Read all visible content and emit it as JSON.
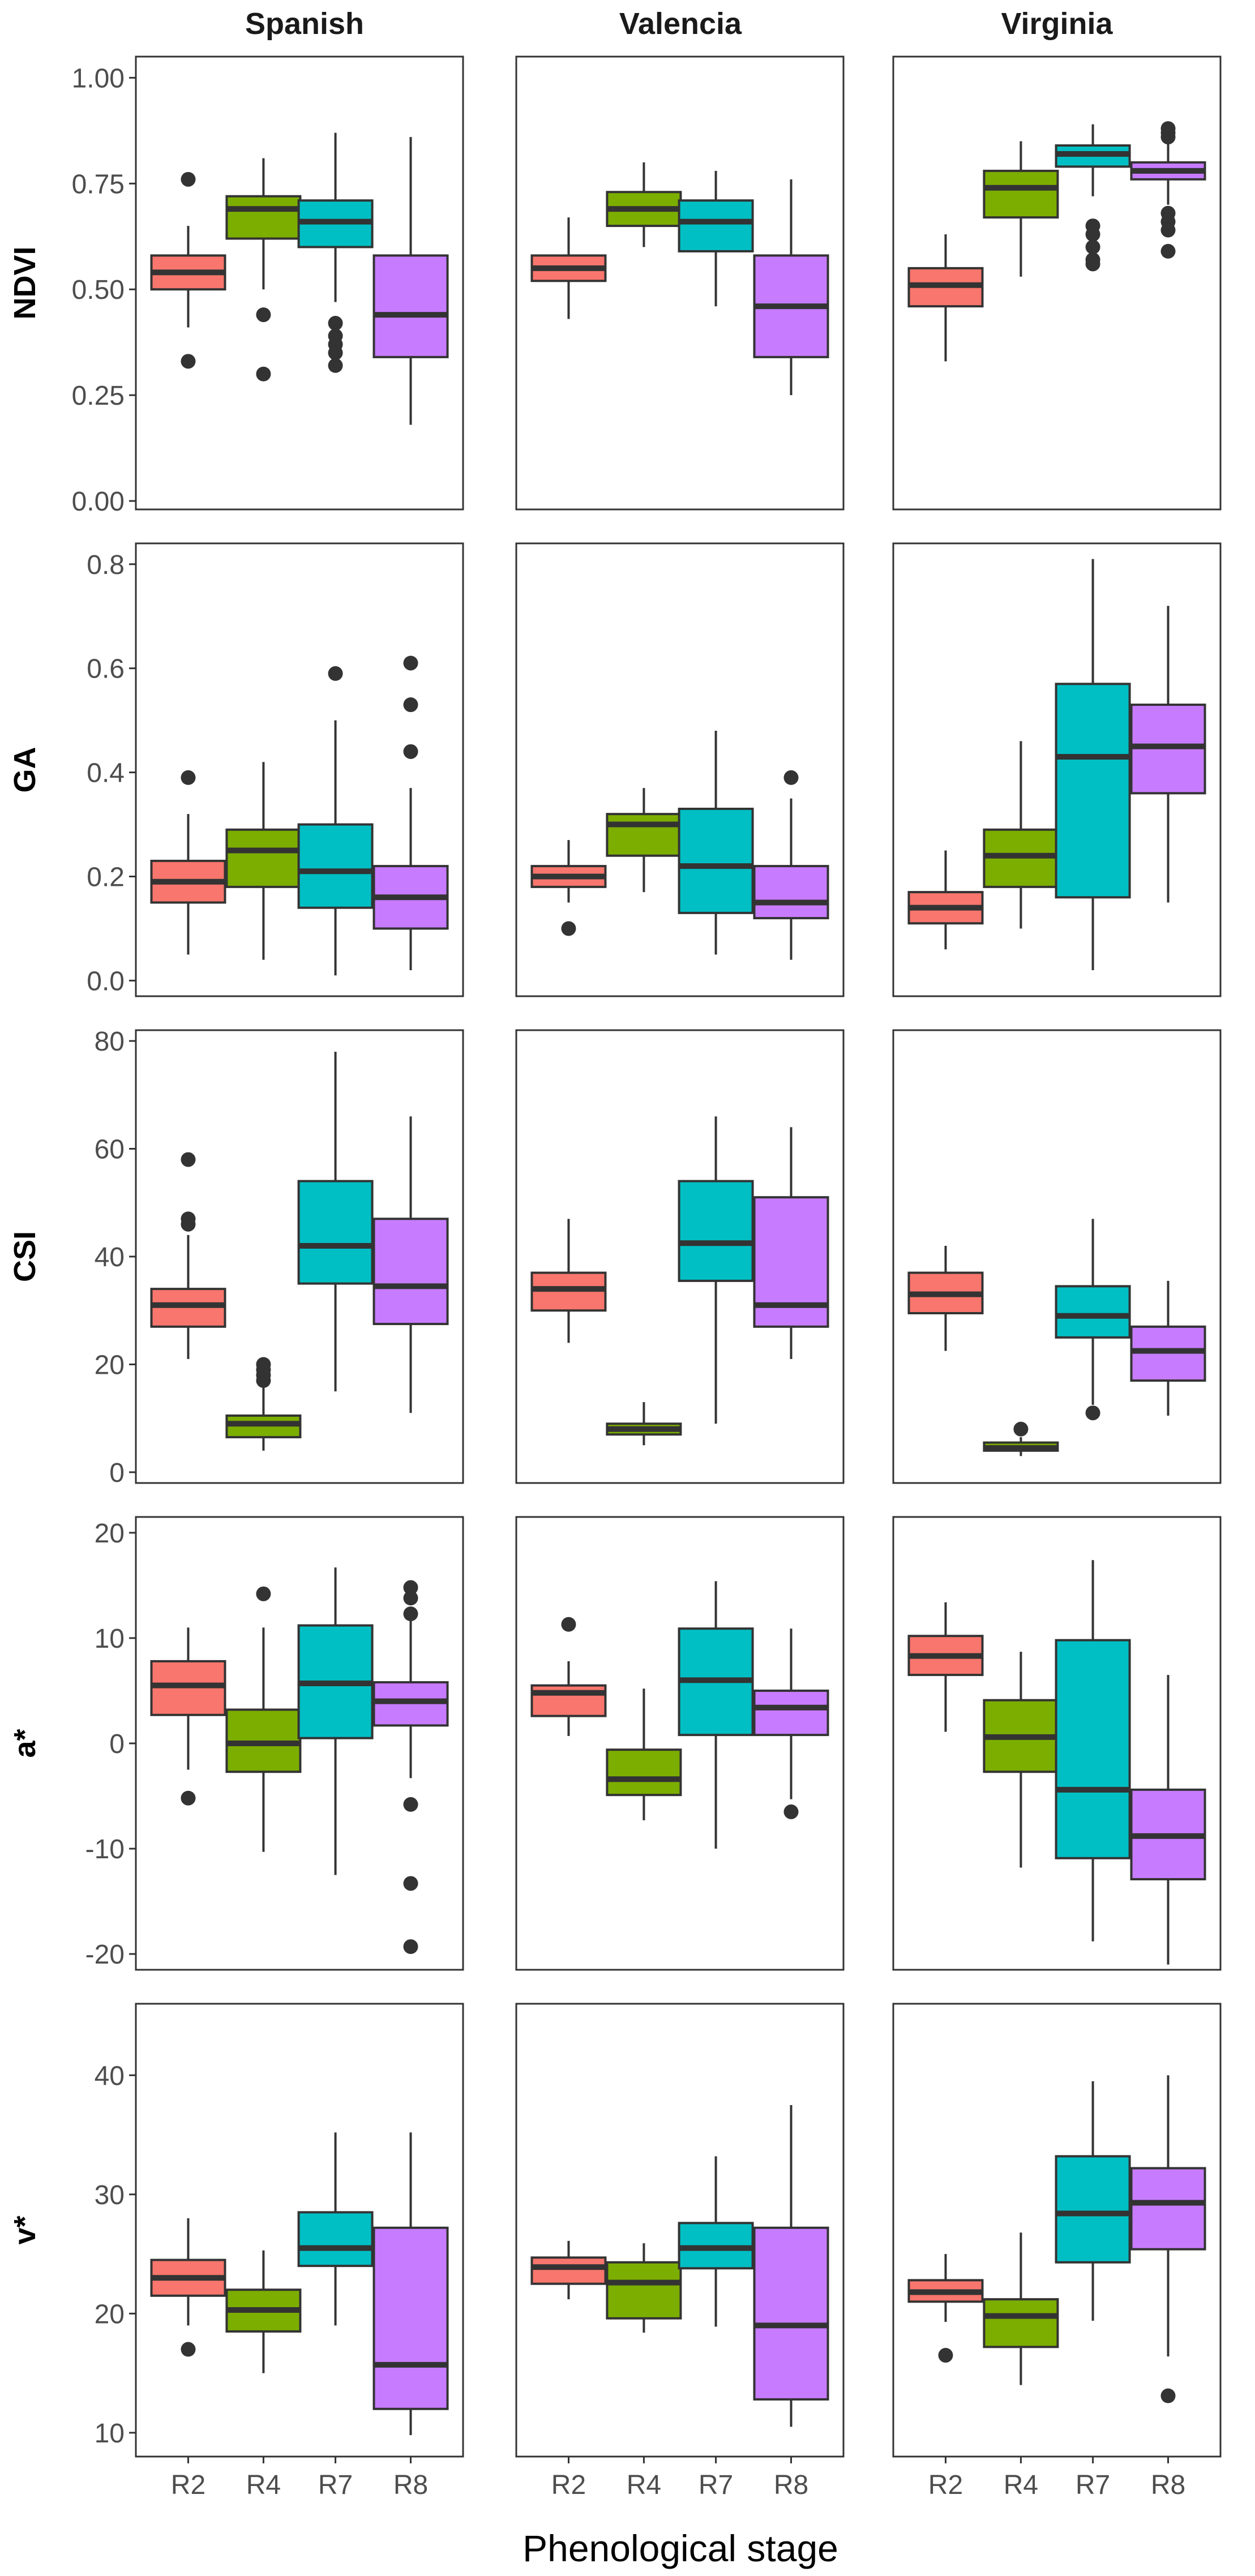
{
  "chart_data": {
    "type": "boxplot",
    "xlabel": "Phenological stage",
    "facets": [
      "Spanish",
      "Valencia",
      "Virginia"
    ],
    "categories": [
      "R2",
      "R4",
      "R7",
      "R8"
    ],
    "colors": [
      "#F8766D",
      "#7CAE00",
      "#00BFC4",
      "#C77CFF"
    ],
    "rows": [
      {
        "ylabel": "NDVI",
        "ylim": [
          -0.02,
          1.05
        ],
        "ticks": [
          0.0,
          0.25,
          0.5,
          0.75,
          1.0
        ],
        "tick_labels": [
          "0.00",
          "0.25",
          "0.50",
          "0.75",
          "1.00"
        ],
        "data": [
          [
            {
              "min": 0.41,
              "q1": 0.5,
              "median": 0.54,
              "q3": 0.58,
              "max": 0.65,
              "outliers": [
                0.76,
                0.33
              ]
            },
            {
              "min": 0.5,
              "q1": 0.62,
              "median": 0.69,
              "q3": 0.72,
              "max": 0.81,
              "outliers": [
                0.44,
                0.3
              ]
            },
            {
              "min": 0.47,
              "q1": 0.6,
              "median": 0.66,
              "q3": 0.71,
              "max": 0.87,
              "outliers": [
                0.42,
                0.39,
                0.37,
                0.35,
                0.32
              ]
            },
            {
              "min": 0.18,
              "q1": 0.34,
              "median": 0.44,
              "q3": 0.58,
              "max": 0.86,
              "outliers": []
            }
          ],
          [
            {
              "min": 0.43,
              "q1": 0.52,
              "median": 0.55,
              "q3": 0.58,
              "max": 0.67,
              "outliers": []
            },
            {
              "min": 0.6,
              "q1": 0.65,
              "median": 0.69,
              "q3": 0.73,
              "max": 0.8,
              "outliers": []
            },
            {
              "min": 0.46,
              "q1": 0.59,
              "median": 0.66,
              "q3": 0.71,
              "max": 0.78,
              "outliers": []
            },
            {
              "min": 0.25,
              "q1": 0.34,
              "median": 0.46,
              "q3": 0.58,
              "max": 0.76,
              "outliers": []
            }
          ],
          [
            {
              "min": 0.33,
              "q1": 0.46,
              "median": 0.51,
              "q3": 0.55,
              "max": 0.63,
              "outliers": []
            },
            {
              "min": 0.53,
              "q1": 0.67,
              "median": 0.74,
              "q3": 0.78,
              "max": 0.85,
              "outliers": []
            },
            {
              "min": 0.72,
              "q1": 0.79,
              "median": 0.82,
              "q3": 0.84,
              "max": 0.89,
              "outliers": [
                0.65,
                0.63,
                0.6,
                0.57,
                0.56
              ]
            },
            {
              "min": 0.7,
              "q1": 0.76,
              "median": 0.78,
              "q3": 0.8,
              "max": 0.85,
              "outliers": [
                0.88,
                0.87,
                0.86,
                0.68,
                0.66,
                0.64,
                0.59
              ]
            }
          ]
        ]
      },
      {
        "ylabel": "GA",
        "ylim": [
          -0.03,
          0.84
        ],
        "ticks": [
          0.0,
          0.2,
          0.4,
          0.6,
          0.8
        ],
        "tick_labels": [
          "0.0",
          "0.2",
          "0.4",
          "0.6",
          "0.8"
        ],
        "data": [
          [
            {
              "min": 0.05,
              "q1": 0.15,
              "median": 0.19,
              "q3": 0.23,
              "max": 0.32,
              "outliers": [
                0.39
              ]
            },
            {
              "min": 0.04,
              "q1": 0.18,
              "median": 0.25,
              "q3": 0.29,
              "max": 0.42,
              "outliers": []
            },
            {
              "min": 0.01,
              "q1": 0.14,
              "median": 0.21,
              "q3": 0.3,
              "max": 0.5,
              "outliers": [
                0.59
              ]
            },
            {
              "min": 0.02,
              "q1": 0.1,
              "median": 0.16,
              "q3": 0.22,
              "max": 0.37,
              "outliers": [
                0.61,
                0.53,
                0.44
              ]
            }
          ],
          [
            {
              "min": 0.15,
              "q1": 0.18,
              "median": 0.2,
              "q3": 0.22,
              "max": 0.27,
              "outliers": [
                0.1
              ]
            },
            {
              "min": 0.17,
              "q1": 0.24,
              "median": 0.3,
              "q3": 0.32,
              "max": 0.37,
              "outliers": []
            },
            {
              "min": 0.05,
              "q1": 0.13,
              "median": 0.22,
              "q3": 0.33,
              "max": 0.48,
              "outliers": []
            },
            {
              "min": 0.04,
              "q1": 0.12,
              "median": 0.15,
              "q3": 0.22,
              "max": 0.35,
              "outliers": [
                0.39
              ]
            }
          ],
          [
            {
              "min": 0.06,
              "q1": 0.11,
              "median": 0.14,
              "q3": 0.17,
              "max": 0.25,
              "outliers": []
            },
            {
              "min": 0.1,
              "q1": 0.18,
              "median": 0.24,
              "q3": 0.29,
              "max": 0.46,
              "outliers": []
            },
            {
              "min": 0.02,
              "q1": 0.16,
              "median": 0.43,
              "q3": 0.57,
              "max": 0.81,
              "outliers": []
            },
            {
              "min": 0.15,
              "q1": 0.36,
              "median": 0.45,
              "q3": 0.53,
              "max": 0.72,
              "outliers": []
            }
          ]
        ]
      },
      {
        "ylabel": "CSI",
        "ylim": [
          -2,
          82
        ],
        "ticks": [
          0,
          20,
          40,
          60,
          80
        ],
        "tick_labels": [
          "0",
          "20",
          "40",
          "60",
          "80"
        ],
        "data": [
          [
            {
              "min": 21,
              "q1": 27,
              "median": 31,
              "q3": 34,
              "max": 44,
              "outliers": [
                58,
                47,
                46
              ]
            },
            {
              "min": 4,
              "q1": 6.5,
              "median": 9,
              "q3": 10.5,
              "max": 16,
              "outliers": [
                20,
                19,
                18,
                17
              ]
            },
            {
              "min": 15,
              "q1": 35,
              "median": 42,
              "q3": 54,
              "max": 78,
              "outliers": []
            },
            {
              "min": 11,
              "q1": 27.5,
              "median": 34.5,
              "q3": 47,
              "max": 66,
              "outliers": []
            }
          ],
          [
            {
              "min": 24,
              "q1": 30,
              "median": 34,
              "q3": 37,
              "max": 47,
              "outliers": []
            },
            {
              "min": 5,
              "q1": 7,
              "median": 8,
              "q3": 9,
              "max": 13,
              "outliers": []
            },
            {
              "min": 9,
              "q1": 35.5,
              "median": 42.5,
              "q3": 54,
              "max": 66,
              "outliers": []
            },
            {
              "min": 21,
              "q1": 27,
              "median": 31,
              "q3": 51,
              "max": 64,
              "outliers": []
            }
          ],
          [
            {
              "min": 22.5,
              "q1": 29.5,
              "median": 33,
              "q3": 37,
              "max": 42,
              "outliers": []
            },
            {
              "min": 3,
              "q1": 4,
              "median": 4.5,
              "q3": 5.5,
              "max": 6.5,
              "outliers": [
                8
              ]
            },
            {
              "min": 12.5,
              "q1": 25,
              "median": 29,
              "q3": 34.5,
              "max": 47,
              "outliers": [
                11
              ]
            },
            {
              "min": 10.5,
              "q1": 17,
              "median": 22.5,
              "q3": 27,
              "max": 35.5,
              "outliers": []
            }
          ]
        ]
      },
      {
        "ylabel": "a*",
        "ylim": [
          -21.5,
          21.5
        ],
        "ticks": [
          -20,
          -10,
          0,
          10,
          20
        ],
        "tick_labels": [
          "-20",
          "-10",
          "0",
          "10",
          "20"
        ],
        "data": [
          [
            {
              "min": -2.5,
              "q1": 2.7,
              "median": 5.5,
              "q3": 7.8,
              "max": 11,
              "outliers": [
                -5.2
              ]
            },
            {
              "min": -10.3,
              "q1": -2.7,
              "median": 0,
              "q3": 3.2,
              "max": 11,
              "outliers": [
                14.2
              ]
            },
            {
              "min": -12.5,
              "q1": 0.5,
              "median": 5.7,
              "q3": 11.2,
              "max": 16.7,
              "outliers": []
            },
            {
              "min": -3.3,
              "q1": 1.7,
              "median": 4,
              "q3": 5.8,
              "max": 11.8,
              "outliers": [
                14.8,
                13.8,
                12.3,
                -5.8,
                -13.3,
                -19.3
              ]
            }
          ],
          [
            {
              "min": 0.7,
              "q1": 2.6,
              "median": 4.8,
              "q3": 5.5,
              "max": 7.8,
              "outliers": [
                11.3
              ]
            },
            {
              "min": -7.3,
              "q1": -4.9,
              "median": -3.4,
              "q3": -0.6,
              "max": 5.2,
              "outliers": []
            },
            {
              "min": -10,
              "q1": 0.8,
              "median": 6,
              "q3": 10.9,
              "max": 15.4,
              "outliers": []
            },
            {
              "min": -5.3,
              "q1": 0.8,
              "median": 3.4,
              "q3": 5,
              "max": 10.9,
              "outliers": [
                -6.5
              ]
            }
          ],
          [
            {
              "min": 1.1,
              "q1": 6.5,
              "median": 8.3,
              "q3": 10.2,
              "max": 13.4,
              "outliers": []
            },
            {
              "min": -11.8,
              "q1": -2.7,
              "median": 0.6,
              "q3": 4.1,
              "max": 8.7,
              "outliers": []
            },
            {
              "min": -18.8,
              "q1": -10.9,
              "median": -4.4,
              "q3": 9.8,
              "max": 17.4,
              "outliers": []
            },
            {
              "min": -21,
              "q1": -12.9,
              "median": -8.8,
              "q3": -4.4,
              "max": 6.5,
              "outliers": []
            }
          ]
        ]
      },
      {
        "ylabel": "v*",
        "ylim": [
          8,
          46
        ],
        "ticks": [
          10,
          20,
          30,
          40
        ],
        "tick_labels": [
          "10",
          "20",
          "30",
          "40"
        ],
        "data": [
          [
            {
              "min": 19,
              "q1": 21.5,
              "median": 23,
              "q3": 24.5,
              "max": 28,
              "outliers": [
                17
              ]
            },
            {
              "min": 15,
              "q1": 18.5,
              "median": 20.3,
              "q3": 22,
              "max": 25.3,
              "outliers": []
            },
            {
              "min": 19,
              "q1": 24,
              "median": 25.5,
              "q3": 28.5,
              "max": 35.2,
              "outliers": []
            },
            {
              "min": 9.8,
              "q1": 12,
              "median": 15.7,
              "q3": 27.2,
              "max": 35.2,
              "outliers": []
            }
          ],
          [
            {
              "min": 21.2,
              "q1": 22.5,
              "median": 23.9,
              "q3": 24.7,
              "max": 26.1,
              "outliers": []
            },
            {
              "min": 18.4,
              "q1": 19.6,
              "median": 22.6,
              "q3": 24.3,
              "max": 25.9,
              "outliers": []
            },
            {
              "min": 18.9,
              "q1": 23.8,
              "median": 25.5,
              "q3": 27.6,
              "max": 33.2,
              "outliers": []
            },
            {
              "min": 10.5,
              "q1": 12.8,
              "median": 19,
              "q3": 27.2,
              "max": 37.5,
              "outliers": []
            }
          ],
          [
            {
              "min": 19.3,
              "q1": 21,
              "median": 21.8,
              "q3": 22.8,
              "max": 25,
              "outliers": [
                16.5
              ]
            },
            {
              "min": 14,
              "q1": 17.2,
              "median": 19.8,
              "q3": 21.2,
              "max": 26.8,
              "outliers": []
            },
            {
              "min": 19.4,
              "q1": 24.3,
              "median": 28.4,
              "q3": 33.2,
              "max": 39.5,
              "outliers": []
            },
            {
              "min": 16.4,
              "q1": 25.4,
              "median": 29.3,
              "q3": 32.2,
              "max": 40,
              "outliers": [
                13.1
              ]
            }
          ]
        ]
      }
    ]
  }
}
